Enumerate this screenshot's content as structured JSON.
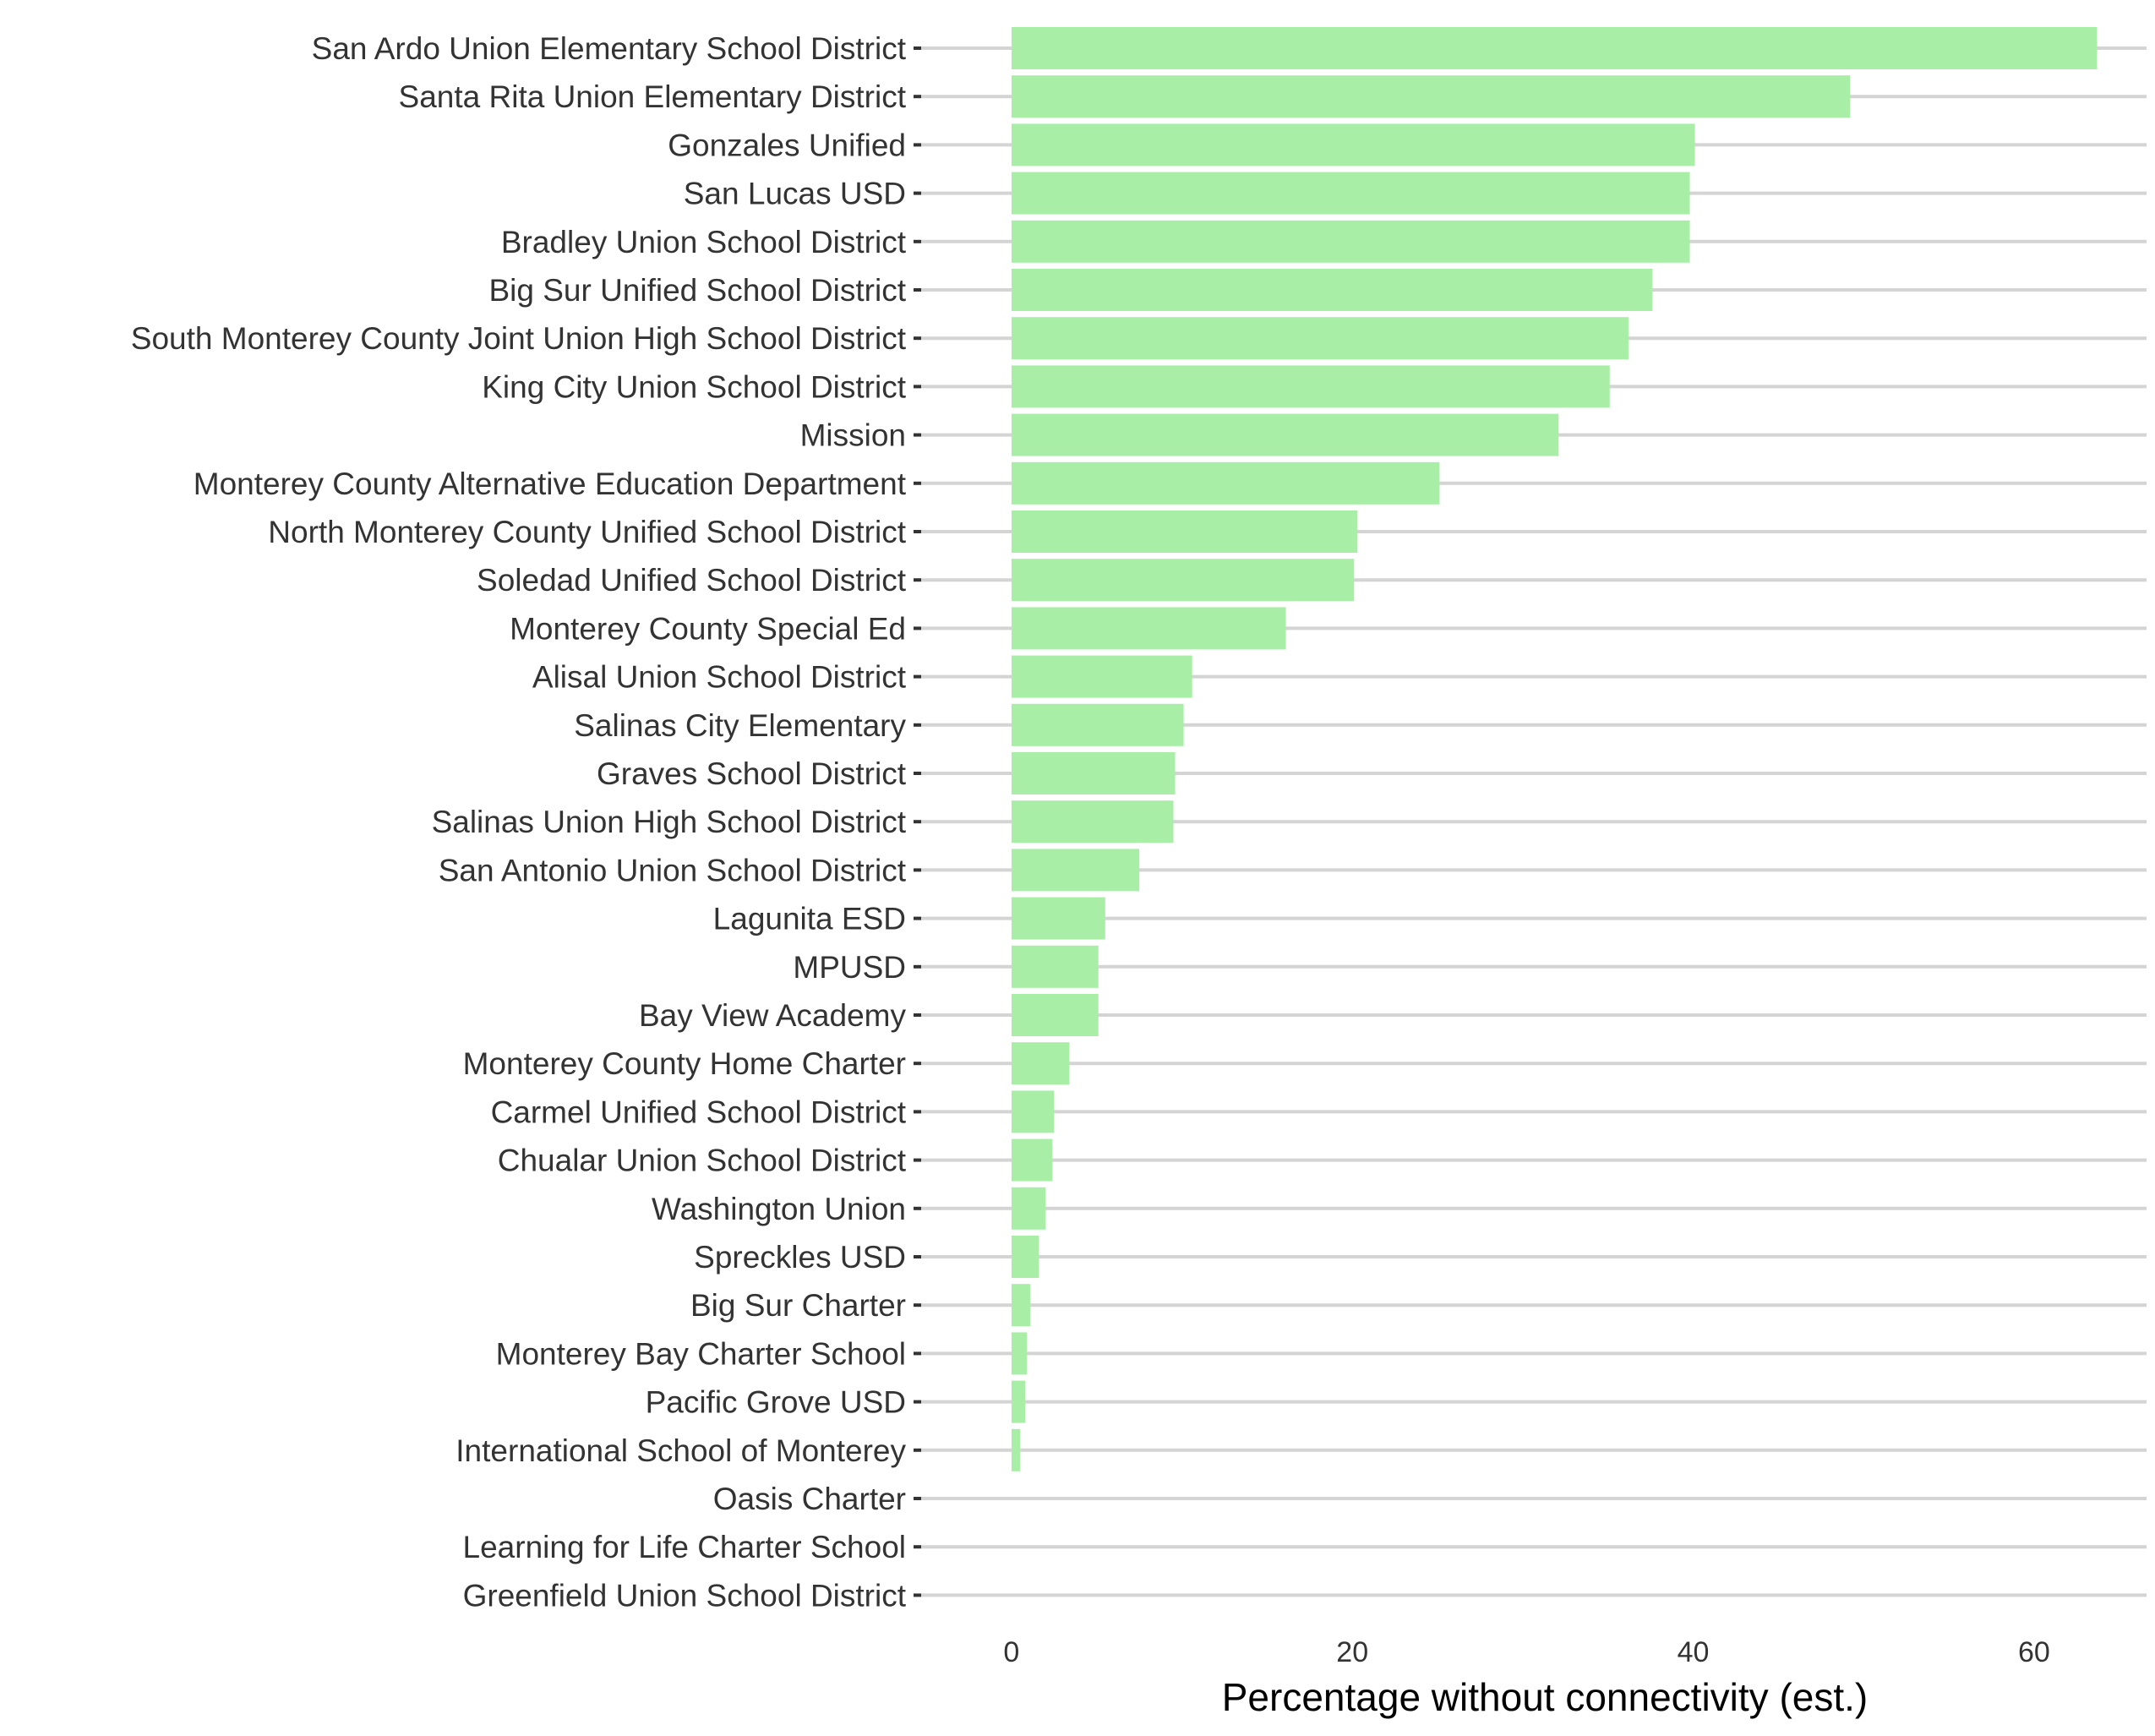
{
  "chart_data": {
    "type": "bar",
    "orientation": "horizontal",
    "title": "",
    "xlabel": "Percentage without connectivity (est.)",
    "ylabel": "",
    "xlim": [
      -5.3,
      66.6
    ],
    "xticks": [
      0,
      20,
      40,
      60
    ],
    "grid": "horizontal",
    "bar_color": "#a8eea6",
    "grid_color": "#d4d4d4",
    "categories": [
      "San Ardo Union Elementary School District",
      "Santa Rita Union Elementary District",
      "Gonzales Unified",
      "San Lucas USD",
      "Bradley Union School District",
      "Big Sur Unified School District",
      "South Monterey County Joint Union High School District",
      "King City Union School District",
      "Mission",
      "Monterey County Alternative Education Department",
      "North Monterey County Unified School District",
      "Soledad Unified School District",
      "Monterey County Special Ed",
      "Alisal Union School District",
      "Salinas City Elementary",
      "Graves School District",
      "Salinas Union High School District",
      "San Antonio Union School District",
      "Lagunita ESD",
      "MPUSD",
      "Bay View Academy",
      "Monterey County Home Charter",
      "Carmel Unified School District",
      "Chualar Union School District",
      "Washington Union",
      "Spreckles USD",
      "Big Sur Charter",
      "Monterey Bay Charter School",
      "Pacific Grove USD",
      "International School of Monterey",
      "Oasis Charter",
      "Learning for Life Charter School",
      "Greenfield Union School District"
    ],
    "values": [
      63.7,
      49.2,
      40.1,
      39.8,
      39.8,
      37.6,
      36.2,
      35.1,
      32.1,
      25.1,
      20.3,
      20.1,
      16.1,
      10.6,
      10.1,
      9.6,
      9.5,
      7.5,
      5.5,
      5.1,
      5.1,
      3.4,
      2.5,
      2.4,
      2.0,
      1.6,
      1.1,
      0.9,
      0.8,
      0.5,
      0,
      0,
      0
    ]
  }
}
